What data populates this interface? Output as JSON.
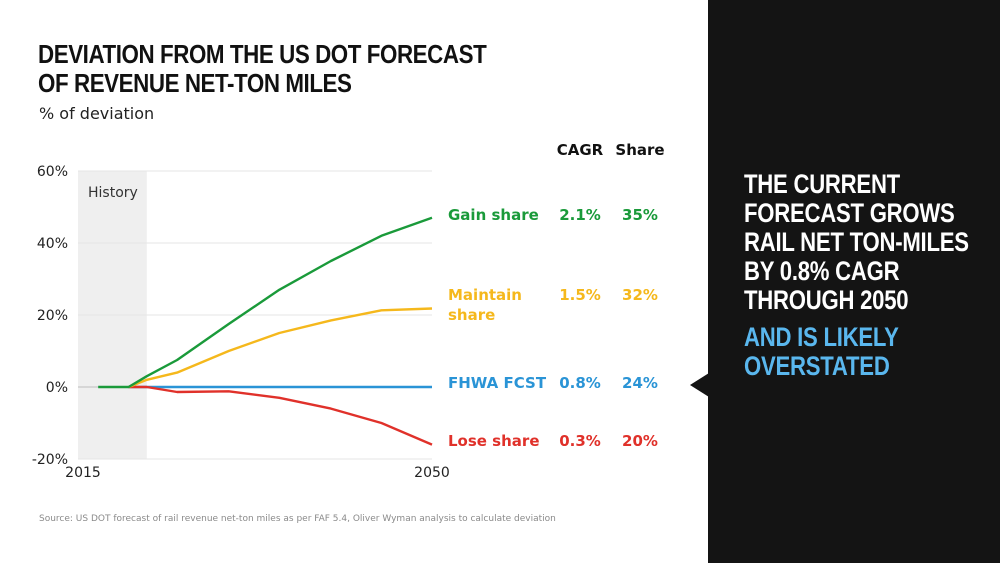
{
  "title_lines": [
    "DEVIATION FROM THE US DOT FORECAST",
    "OF REVENUE NET-TON MILES"
  ],
  "subtitle": "% of deviation",
  "source": "Source: US DOT forecast of rail revenue net-ton miles as per FAF 5.4, Oliver Wyman analysis to calculate deviation",
  "table_headers": {
    "cagr": "CAGR",
    "share": "Share"
  },
  "legend": [
    {
      "label_lines": [
        "Gain share"
      ],
      "cagr": "2.1%",
      "share": "35%",
      "color": "#1a9a3a"
    },
    {
      "label_lines": [
        "Maintain",
        "share"
      ],
      "cagr": "1.5%",
      "share": "32%",
      "color": "#f5b81c"
    },
    {
      "label_lines": [
        "FHWA FCST"
      ],
      "cagr": "0.8%",
      "share": "24%",
      "color": "#2a94d6"
    },
    {
      "label_lines": [
        "Lose share"
      ],
      "cagr": "0.3%",
      "share": "20%",
      "color": "#e0312a"
    }
  ],
  "panel": {
    "lines": [
      "THE CURRENT",
      "FORECAST GROWS",
      "RAIL NET TON-MILES",
      "BY 0.8% CAGR",
      "THROUGH 2050"
    ],
    "accent_lines": [
      "AND IS LIKELY",
      "OVERSTATED"
    ],
    "accent_color": "#5ab7ee"
  },
  "chart_data": {
    "type": "line",
    "title": "DEVIATION FROM THE US DOT FORECAST OF REVENUE NET-TON MILES",
    "ylabel": "% of deviation",
    "xlabel": "",
    "xlim": [
      2015,
      2050
    ],
    "ylim": [
      -20,
      60
    ],
    "x_tick_labels": [
      "2015",
      "2050"
    ],
    "x_ticks": [
      2015,
      2050
    ],
    "y_ticks": [
      60,
      40,
      20,
      0,
      -20
    ],
    "y_tick_labels": [
      "60%",
      "40%",
      "20%",
      "0%",
      "-20%"
    ],
    "grid": true,
    "shaded_region": {
      "label": "History",
      "from": 2015,
      "to": 2021.8,
      "color": "#efefef"
    },
    "series": [
      {
        "name": "Gain share",
        "color": "#1a9a3a",
        "x": [
          2017,
          2020,
          2021.8,
          2024.8,
          2029.9,
          2034.9,
          2040,
          2045,
          2050
        ],
        "values": [
          0,
          0,
          3,
          7.5,
          17.5,
          27,
          35,
          42,
          47
        ]
      },
      {
        "name": "Maintain share",
        "color": "#f5b81c",
        "x": [
          2020,
          2021.8,
          2024.8,
          2029.9,
          2034.9,
          2040,
          2045,
          2050
        ],
        "values": [
          0,
          2,
          4,
          10,
          15,
          18.5,
          21.3,
          21.8
        ]
      },
      {
        "name": "FHWA FCST",
        "color": "#2a94d6",
        "x": [
          2020,
          2021.8,
          2024.8,
          2029.9,
          2034.9,
          2040,
          2045,
          2050
        ],
        "values": [
          0,
          0,
          0,
          0,
          0,
          0,
          0,
          0
        ]
      },
      {
        "name": "Lose share",
        "color": "#e0312a",
        "x": [
          2020,
          2021.8,
          2024.8,
          2029.9,
          2034.9,
          2040,
          2045,
          2050
        ],
        "values": [
          0,
          0,
          -1.4,
          -1.2,
          -3,
          -6,
          -10,
          -16
        ]
      }
    ],
    "legend_position": "right"
  }
}
